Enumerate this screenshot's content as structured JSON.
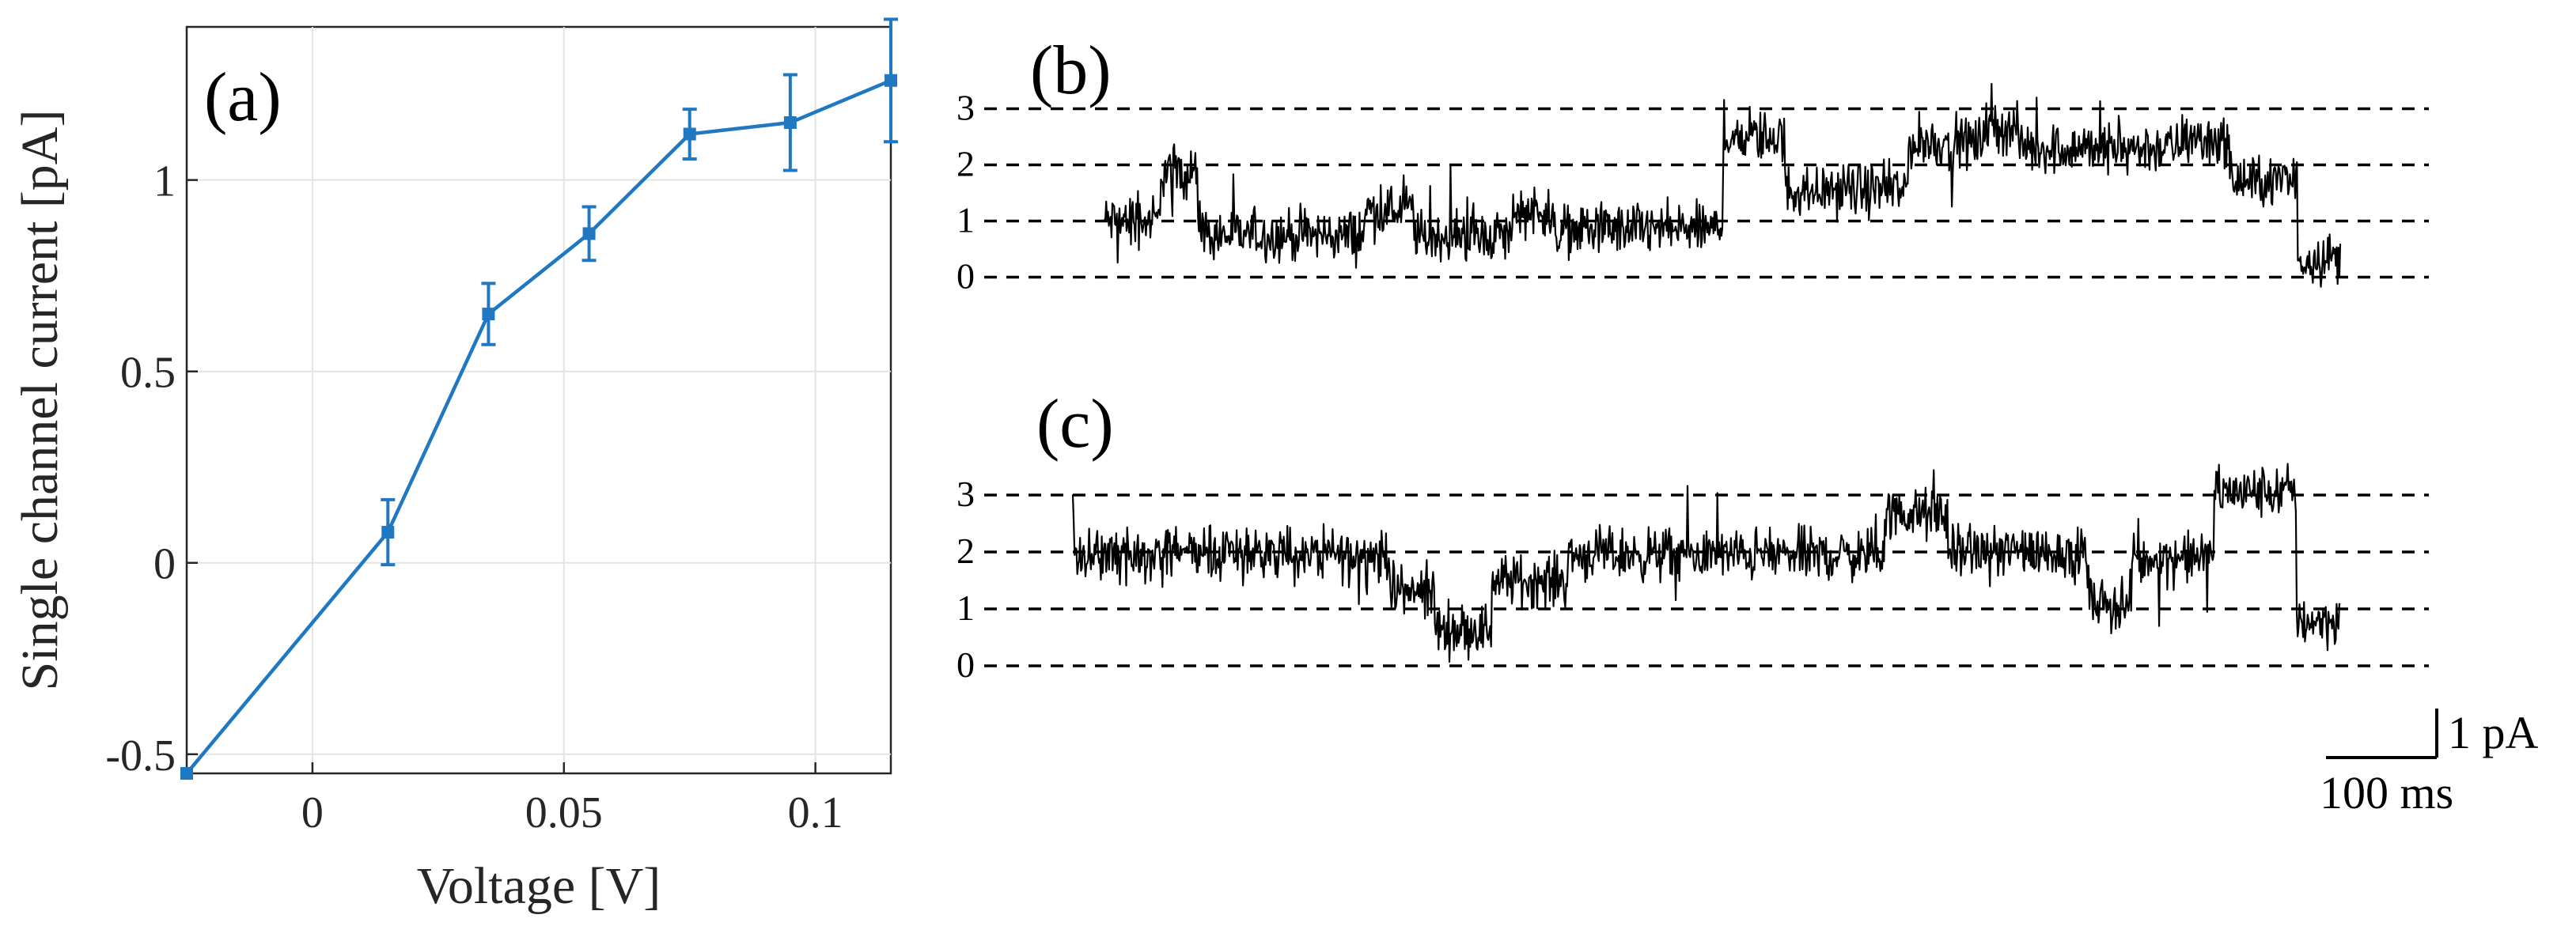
{
  "chart_data": [
    {
      "panel": "(a)",
      "type": "line",
      "xlabel": "Voltage [V]",
      "ylabel": "Single channel current [pA]",
      "xlim": [
        -0.025,
        0.115
      ],
      "ylim": [
        -0.55,
        1.4
      ],
      "xticks": [
        0,
        0.05,
        0.1
      ],
      "xtick_labels": [
        "0",
        "0.05",
        "0.1"
      ],
      "yticks": [
        -0.5,
        0,
        0.5,
        1
      ],
      "ytick_labels": [
        "-0.5",
        "0",
        "0.5",
        "1"
      ],
      "grid": true,
      "color": "#1f78c1",
      "x": [
        -0.025,
        0.015,
        0.035,
        0.055,
        0.075,
        0.095,
        0.115
      ],
      "y": [
        -0.55,
        0.08,
        0.65,
        0.86,
        1.12,
        1.15,
        1.26
      ],
      "yerr": [
        0.0,
        0.085,
        0.08,
        0.07,
        0.065,
        0.125,
        0.16
      ]
    },
    {
      "panel": "(b)",
      "type": "line",
      "ylim": [
        -0.5,
        3.5
      ],
      "level_ticks": [
        "0",
        "1",
        "2",
        "3"
      ],
      "levels": [
        0,
        1,
        2,
        3
      ],
      "segments": [
        {
          "t": [
            0.0,
            0.045
          ],
          "level": 1.0
        },
        {
          "t": [
            0.045,
            0.075
          ],
          "level": 1.9
        },
        {
          "t": [
            0.075,
            0.21
          ],
          "level": 0.75
        },
        {
          "t": [
            0.21,
            0.25
          ],
          "level": 1.2
        },
        {
          "t": [
            0.25,
            0.33
          ],
          "level": 0.75
        },
        {
          "t": [
            0.33,
            0.36
          ],
          "level": 1.2
        },
        {
          "t": [
            0.36,
            0.5
          ],
          "level": 0.85
        },
        {
          "t": [
            0.5,
            0.55
          ],
          "level": 2.5
        },
        {
          "t": [
            0.55,
            0.65
          ],
          "level": 1.55
        },
        {
          "t": [
            0.65,
            0.71
          ],
          "level": 2.4
        },
        {
          "t": [
            0.71,
            0.74
          ],
          "level": 2.65
        },
        {
          "t": [
            0.74,
            0.87
          ],
          "level": 2.3
        },
        {
          "t": [
            0.87,
            0.91
          ],
          "level": 2.45
        },
        {
          "t": [
            0.91,
            0.965
          ],
          "level": 1.7
        },
        {
          "t": [
            0.965,
            1.0
          ],
          "level": 0.35
        }
      ]
    },
    {
      "panel": "(c)",
      "type": "line",
      "ylim": [
        -0.5,
        3.5
      ],
      "level_ticks": [
        "0",
        "1",
        "2",
        "3"
      ],
      "levels": [
        0,
        1,
        2,
        3
      ],
      "segments": [
        {
          "t": [
            0.0,
            0.25
          ],
          "level": 1.95
        },
        {
          "t": [
            0.25,
            0.285
          ],
          "level": 1.3
        },
        {
          "t": [
            0.285,
            0.33
          ],
          "level": 0.65
        },
        {
          "t": [
            0.33,
            0.39
          ],
          "level": 1.5
        },
        {
          "t": [
            0.39,
            0.64
          ],
          "level": 1.95
        },
        {
          "t": [
            0.64,
            0.69
          ],
          "level": 2.65
        },
        {
          "t": [
            0.69,
            0.8
          ],
          "level": 2.0
        },
        {
          "t": [
            0.8,
            0.835
          ],
          "level": 1.1
        },
        {
          "t": [
            0.835,
            0.9
          ],
          "level": 1.9
        },
        {
          "t": [
            0.9,
            0.965
          ],
          "level": 3.05
        },
        {
          "t": [
            0.965,
            1.0
          ],
          "level": 0.8
        }
      ]
    }
  ],
  "scale_bar": {
    "current_label": "1 pA",
    "time_label": "100 ms"
  }
}
